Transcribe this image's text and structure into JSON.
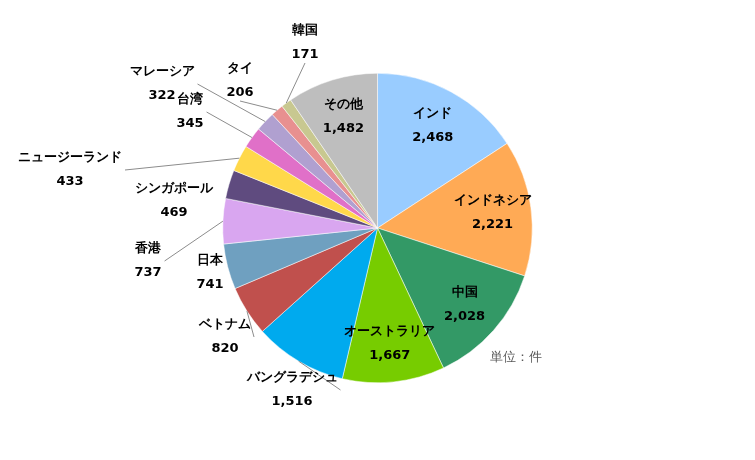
{
  "chart_data": {
    "type": "pie",
    "annotation": "単位：件",
    "categories": [
      "インド",
      "インドネシア",
      "中国",
      "オーストラリア",
      "バングラデシュ",
      "ベトナム",
      "日本",
      "香港",
      "シンガポール",
      "ニュージーランド",
      "台湾",
      "マレーシア",
      "タイ",
      "韓国",
      "その他"
    ],
    "values": [
      2468,
      2221,
      2028,
      1667,
      1516,
      820,
      741,
      737,
      469,
      433,
      345,
      322,
      206,
      171,
      1482
    ],
    "value_labels": [
      "2,468",
      "2,221",
      "2,028",
      "1,667",
      "1,516",
      "820",
      "741",
      "737",
      "469",
      "433",
      "345",
      "322",
      "206",
      "171",
      "1,482"
    ],
    "colors": [
      "#99CCFF",
      "#FFAA55",
      "#339966",
      "#77CC00",
      "#00AAEE",
      "#C0504D",
      "#6FA0C0",
      "#D9A6F0",
      "#5F4B7F",
      "#FFD84A",
      "#E070C8",
      "#B0A0D0",
      "#E89090",
      "#C8C890",
      "#BEBEBE"
    ],
    "data_labels": true
  }
}
